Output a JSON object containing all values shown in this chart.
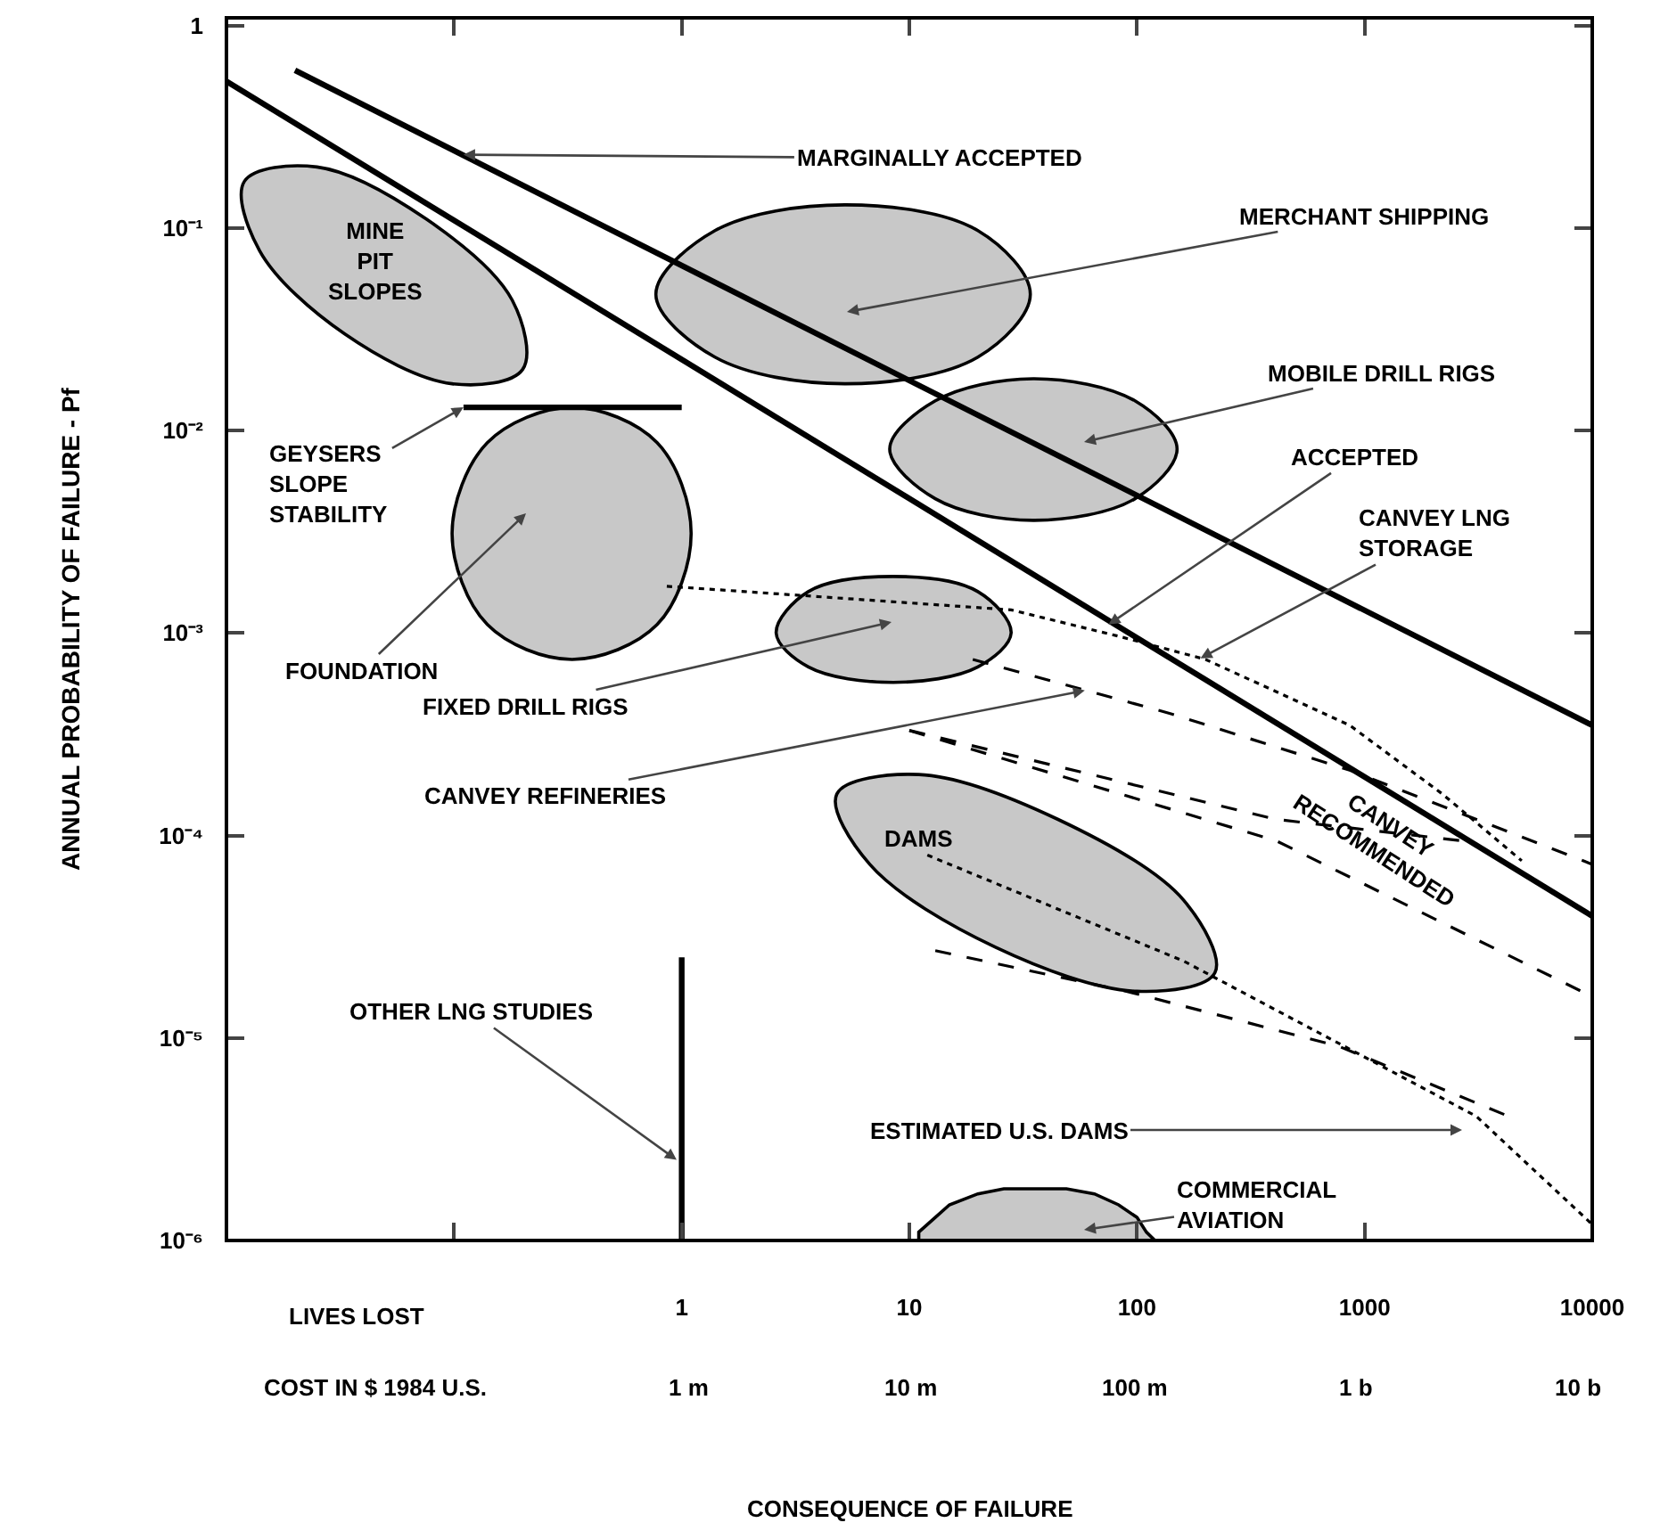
{
  "chart_data": {
    "type": "line",
    "ylabel": "ANNUAL PROBABILITY OF FAILURE - Pf",
    "log": "xy",
    "xlim": [
      0.01,
      10000
    ],
    "ylim": [
      1e-06,
      1.09
    ],
    "xticks": [
      {
        "value": 0.1,
        "label": null
      },
      1,
      10,
      100,
      1000,
      10000
    ],
    "yticks": [
      1,
      {
        "value": 0.1,
        "label": "10⁻¹"
      },
      {
        "value": 0.01,
        "label": "10⁻²"
      },
      {
        "value": 0.001,
        "label": "10⁻³"
      },
      {
        "value": 0.0001,
        "label": "10⁻⁴"
      },
      {
        "value": 1e-05,
        "label": "10⁻⁵"
      },
      {
        "value": 1e-06,
        "label": "10⁻⁶"
      }
    ],
    "series": [
      {
        "type": "area",
        "color": "#c8c8c8",
        "x": [
          0.2,
          0.098,
          0.033,
          0.014,
          0.012,
          0.025,
          0.076,
          0.18,
          0.2
        ],
        "values": [
          0.02,
          0.017,
          0.03,
          0.077,
          0.17,
          0.2,
          0.11,
          0.044,
          0.02
        ]
      },
      {
        "type": "area",
        "color": "#c8c8c8",
        "x": [
          34,
          20,
          5.2,
          1.4,
          0.77,
          1.4,
          5.2,
          20,
          34
        ],
        "values": [
          0.047,
          0.023,
          0.017,
          0.023,
          0.047,
          0.097,
          0.13,
          0.097,
          0.047
        ]
      },
      {
        "type": "area",
        "color": "#c8c8c8",
        "x": [
          150,
          98,
          35,
          13,
          8.2,
          13,
          35,
          98,
          150
        ],
        "values": [
          0.0081,
          0.0046,
          0.0036,
          0.0046,
          0.0081,
          0.014,
          0.018,
          0.014,
          0.0081
        ]
      },
      {
        "type": "area",
        "color": "#c8c8c8",
        "x": [
          1.1,
          0.78,
          0.33,
          0.14,
          0.098,
          0.14,
          0.33,
          0.78,
          1.1
        ],
        "values": [
          0.0031,
          0.0011,
          0.00074,
          0.0011,
          0.0031,
          0.0087,
          0.013,
          0.0087,
          0.0031
        ]
      },
      {
        "type": "area",
        "color": "#c8c8c8",
        "x": [
          28,
          20,
          8.5,
          3.6,
          2.6,
          3.6,
          8.5,
          20,
          28
        ],
        "values": [
          0.001,
          0.00068,
          0.00057,
          0.00068,
          0.001,
          0.0016,
          0.0019,
          0.0016,
          0.001
        ]
      },
      {
        "type": "area",
        "color": "#c8c8c8",
        "x": [
          220,
          100,
          24,
          6.7,
          4.8,
          11,
          45,
          160,
          220
        ],
        "values": [
          2.1e-05,
          1.7e-05,
          2.8e-05,
          7.2e-05,
          0.00016,
          0.0002,
          0.00012,
          4.8e-05,
          2.1e-05
        ]
      },
      {
        "type": "area",
        "color": "#c8c8c8",
        "x": [
          120,
          110,
          100,
          83,
          65,
          49,
          36,
          26,
          20,
          15,
          13,
          11,
          11
        ],
        "values": [
          1e-06,
          1.1e-06,
          1.3e-06,
          1.5e-06,
          1.7e-06,
          1.8e-06,
          1.8e-06,
          1.8e-06,
          1.7e-06,
          1.5e-06,
          1.3e-06,
          1.1e-06,
          1e-06
        ]
      },
      {
        "color": "#000000",
        "line_style": "solid",
        "x": [
          0.02,
          10000
        ],
        "values": [
          0.6,
          0.00035
        ]
      },
      {
        "color": "#000000",
        "line_style": "solid",
        "x": [
          0.01,
          10000
        ],
        "values": [
          0.53,
          4e-05
        ]
      },
      {
        "color": "#000000",
        "line_style": "solid",
        "x": [
          0.11,
          1
        ],
        "values": [
          0.013,
          0.013
        ]
      },
      {
        "color": "#000000",
        "line_style": "solid",
        "x": [
          1,
          1
        ],
        "values": [
          2.5e-05,
          1e-06
        ]
      },
      {
        "color": "#000000",
        "line_style": "dotted",
        "x": [
          0.86,
          1.9,
          28,
          84,
          200,
          860,
          2200,
          4900
        ],
        "values": [
          0.0017,
          0.0016,
          0.0013,
          0.00096,
          0.00074,
          0.00035,
          0.00016,
          7.5e-05
        ]
      },
      {
        "color": "#000000",
        "line_style": "dashed",
        "x": [
          19,
          140,
          860,
          10000
        ],
        "values": [
          0.00074,
          0.0004,
          0.00021,
          7.2e-05
        ]
      },
      {
        "color": "#000000",
        "line_style": "dashed",
        "x": [
          10,
          410,
          10000
        ],
        "values": [
          0.00033,
          9.4e-05,
          1.6e-05
        ]
      },
      {
        "color": "#000000",
        "line_style": "dashed",
        "x": [
          10,
          410,
          2700
        ],
        "values": [
          0.00033,
          0.00012,
          9.4e-05
        ]
      },
      {
        "color": "#000000",
        "line_style": "dashed",
        "x": [
          13,
          90,
          770,
          4300
        ],
        "values": [
          2.7e-05,
          1.7e-05,
          9.1e-06,
          4.1e-06
        ]
      },
      {
        "color": "#000000",
        "line_style": "dotted",
        "x": [
          12,
          160,
          3100,
          10000
        ],
        "values": [
          8e-05,
          2.4e-05,
          4.1e-06,
          1.2e-06
        ]
      }
    ],
    "annotations": [
      {
        "text": "MARGINALLY ACCEPTED",
        "x": 0.11,
        "y": 0.23
      },
      "MERCHANT SHIPPING",
      "MOBILE DRILL RIGS",
      {
        "text": "ACCEPTED",
        "x": 75,
        "y": 0.0011
      },
      {
        "text": "CANVEY LNG\nSTORAGE",
        "x": 190,
        "y": 0.00075
      },
      "MINE\nPIT\nSLOPES",
      {
        "text": "GEYSERS\nSLOPE\nSTABILITY",
        "x": 0.11,
        "y": 0.013
      },
      "FOUNDATION",
      "FIXED DRILL RIGS",
      {
        "text": "CANVEY REFINERIES",
        "x": 59,
        "y": 0.00052
      },
      "DAMS",
      "CANVEY\nRECOMMENDED",
      {
        "text": "OTHER LNG STUDIES",
        "x": 0.95,
        "y": 2.5e-06
      },
      "ESTIMATED U.S. DAMS",
      "COMMERCIAL\nAVIATION",
      "LIVES LOST",
      "COST IN $ 1984 U.S.",
      "1 m",
      "10 m",
      "100 m",
      "1 b",
      "10 b",
      "CONSEQUENCE OF FAILURE"
    ]
  }
}
